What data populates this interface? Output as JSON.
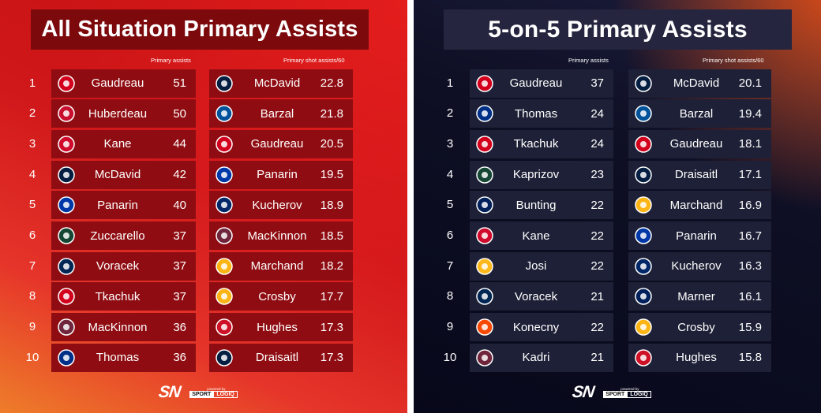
{
  "left_panel": {
    "title": "All Situation Primary Assists",
    "col1_header": "Primary assists",
    "col2_header": "Primary shot assists/60",
    "ranks": [
      "1",
      "2",
      "3",
      "4",
      "5",
      "6",
      "7",
      "8",
      "9",
      "10"
    ],
    "primary_assists": [
      {
        "team_icon": "flames-logo-icon",
        "color": "#d2001c",
        "name": "Gaudreau",
        "value": "51"
      },
      {
        "team_icon": "panthers-logo-icon",
        "color": "#c8102e",
        "name": "Huberdeau",
        "value": "50"
      },
      {
        "team_icon": "blackhawks-logo-icon",
        "color": "#cf0a2c",
        "name": "Kane",
        "value": "44"
      },
      {
        "team_icon": "oilers-logo-icon",
        "color": "#041e42",
        "name": "McDavid",
        "value": "42"
      },
      {
        "team_icon": "rangers-logo-icon",
        "color": "#0038a8",
        "name": "Panarin",
        "value": "40"
      },
      {
        "team_icon": "wild-logo-icon",
        "color": "#154734",
        "name": "Zuccarello",
        "value": "37"
      },
      {
        "team_icon": "blue-jackets-logo-icon",
        "color": "#002654",
        "name": "Voracek",
        "value": "37"
      },
      {
        "team_icon": "flames-logo-icon",
        "color": "#d2001c",
        "name": "Tkachuk",
        "value": "37"
      },
      {
        "team_icon": "avalanche-logo-icon",
        "color": "#6f263d",
        "name": "MacKinnon",
        "value": "36"
      },
      {
        "team_icon": "blues-logo-icon",
        "color": "#002f87",
        "name": "Thomas",
        "value": "36"
      }
    ],
    "shot_assists": [
      {
        "team_icon": "oilers-logo-icon",
        "color": "#041e42",
        "name": "McDavid",
        "value": "22.8"
      },
      {
        "team_icon": "islanders-logo-icon",
        "color": "#00539b",
        "name": "Barzal",
        "value": "21.8"
      },
      {
        "team_icon": "flames-logo-icon",
        "color": "#d2001c",
        "name": "Gaudreau",
        "value": "20.5"
      },
      {
        "team_icon": "rangers-logo-icon",
        "color": "#0038a8",
        "name": "Panarin",
        "value": "19.5"
      },
      {
        "team_icon": "lightning-logo-icon",
        "color": "#002868",
        "name": "Kucherov",
        "value": "18.9"
      },
      {
        "team_icon": "avalanche-logo-icon",
        "color": "#6f263d",
        "name": "MacKinnon",
        "value": "18.5"
      },
      {
        "team_icon": "bruins-logo-icon",
        "color": "#fcb514",
        "name": "Marchand",
        "value": "18.2"
      },
      {
        "team_icon": "penguins-logo-icon",
        "color": "#fcb514",
        "name": "Crosby",
        "value": "17.7"
      },
      {
        "team_icon": "devils-logo-icon",
        "color": "#ce1126",
        "name": "Hughes",
        "value": "17.3"
      },
      {
        "team_icon": "oilers-logo-icon",
        "color": "#041e42",
        "name": "Draisaitl",
        "value": "17.3"
      }
    ]
  },
  "right_panel": {
    "title": "5-on-5 Primary Assists",
    "col1_header": "Primary assists",
    "col2_header": "Primary shot assists/60",
    "ranks": [
      "1",
      "2",
      "3",
      "4",
      "5",
      "6",
      "7",
      "8",
      "9",
      "10"
    ],
    "primary_assists": [
      {
        "team_icon": "flames-logo-icon",
        "color": "#d2001c",
        "name": "Gaudreau",
        "value": "37"
      },
      {
        "team_icon": "blues-logo-icon",
        "color": "#002f87",
        "name": "Thomas",
        "value": "24"
      },
      {
        "team_icon": "flames-logo-icon",
        "color": "#d2001c",
        "name": "Tkachuk",
        "value": "24"
      },
      {
        "team_icon": "wild-logo-icon",
        "color": "#154734",
        "name": "Kaprizov",
        "value": "23"
      },
      {
        "team_icon": "maple-leafs-logo-icon",
        "color": "#00205b",
        "name": "Bunting",
        "value": "22"
      },
      {
        "team_icon": "blackhawks-logo-icon",
        "color": "#cf0a2c",
        "name": "Kane",
        "value": "22"
      },
      {
        "team_icon": "predators-logo-icon",
        "color": "#ffb81c",
        "name": "Josi",
        "value": "22"
      },
      {
        "team_icon": "blue-jackets-logo-icon",
        "color": "#002654",
        "name": "Voracek",
        "value": "21"
      },
      {
        "team_icon": "flyers-logo-icon",
        "color": "#f74902",
        "name": "Konecny",
        "value": "22"
      },
      {
        "team_icon": "avalanche-logo-icon",
        "color": "#6f263d",
        "name": "Kadri",
        "value": "21"
      }
    ],
    "shot_assists": [
      {
        "team_icon": "oilers-logo-icon",
        "color": "#041e42",
        "name": "McDavid",
        "value": "20.1"
      },
      {
        "team_icon": "islanders-logo-icon",
        "color": "#00539b",
        "name": "Barzal",
        "value": "19.4"
      },
      {
        "team_icon": "flames-logo-icon",
        "color": "#d2001c",
        "name": "Gaudreau",
        "value": "18.1"
      },
      {
        "team_icon": "oilers-logo-icon",
        "color": "#041e42",
        "name": "Draisaitl",
        "value": "17.1"
      },
      {
        "team_icon": "bruins-logo-icon",
        "color": "#fcb514",
        "name": "Marchand",
        "value": "16.9"
      },
      {
        "team_icon": "rangers-logo-icon",
        "color": "#0038a8",
        "name": "Panarin",
        "value": "16.7"
      },
      {
        "team_icon": "lightning-logo-icon",
        "color": "#002868",
        "name": "Kucherov",
        "value": "16.3"
      },
      {
        "team_icon": "maple-leafs-logo-icon",
        "color": "#00205b",
        "name": "Marner",
        "value": "16.1"
      },
      {
        "team_icon": "penguins-logo-icon",
        "color": "#fcb514",
        "name": "Crosby",
        "value": "15.9"
      },
      {
        "team_icon": "devils-logo-icon",
        "color": "#ce1126",
        "name": "Hughes",
        "value": "15.8"
      }
    ]
  },
  "footer": {
    "brand": "SN",
    "powered_by": "powered by",
    "partner_a": "SPORT",
    "partner_b": "LOGIQ"
  }
}
